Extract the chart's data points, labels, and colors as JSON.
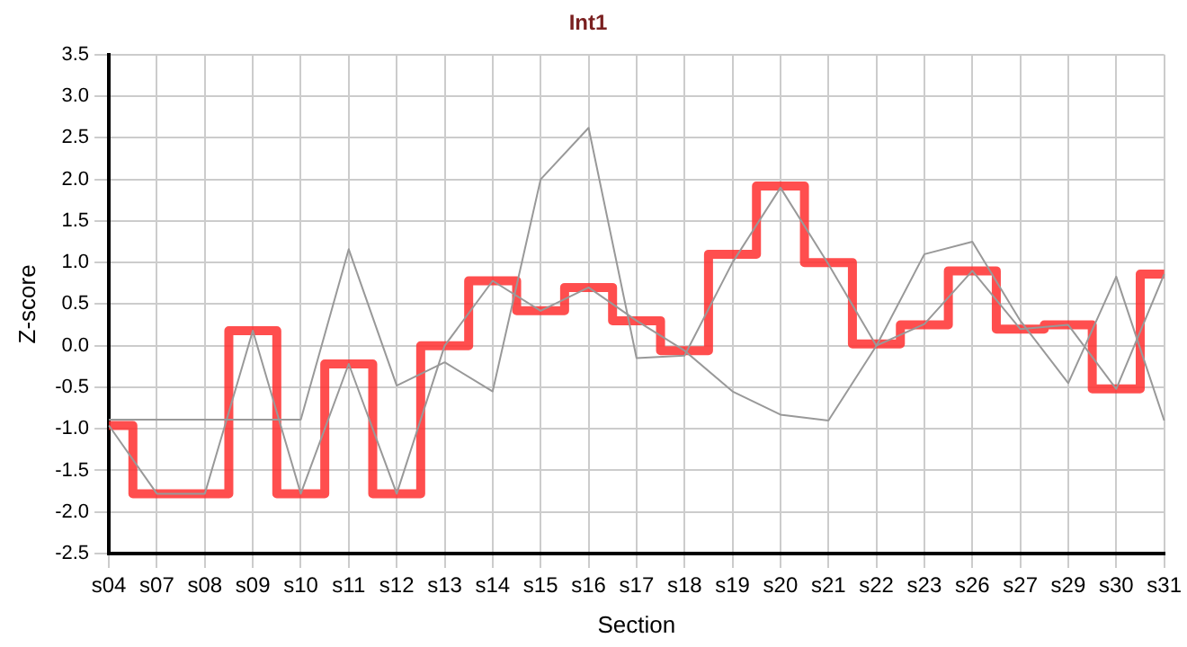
{
  "chart_data": {
    "type": "line",
    "title": "Int1",
    "xlabel": "Section",
    "ylabel": "Z-score",
    "categories": [
      "s04",
      "s07",
      "s08",
      "s09",
      "s10",
      "s11",
      "s12",
      "s13",
      "s14",
      "s15",
      "s16",
      "s17",
      "s18",
      "s19",
      "s20",
      "s21",
      "s22",
      "s23",
      "s26",
      "s27",
      "s29",
      "s30",
      "s31"
    ],
    "series": [
      {
        "type": "line",
        "color": "#999999",
        "values": [
          -0.89,
          -0.89,
          -0.89,
          -0.89,
          -0.89,
          1.16,
          -0.48,
          -0.2,
          -0.55,
          2.0,
          2.62,
          -0.15,
          -0.12,
          1.0,
          1.9,
          0.98,
          0.0,
          1.1,
          1.25,
          0.3,
          -0.45,
          0.83,
          -0.9
        ]
      },
      {
        "type": "line",
        "color": "#999999",
        "values": [
          -0.96,
          -1.78,
          -1.78,
          0.18,
          -1.78,
          -0.22,
          -1.78,
          0.0,
          0.78,
          0.42,
          0.7,
          0.3,
          -0.06,
          -0.55,
          -0.83,
          -0.9,
          0.0,
          0.26,
          0.9,
          0.2,
          0.25,
          -0.52,
          0.86
        ]
      },
      {
        "type": "step",
        "color": "#ff3333",
        "values": [
          -0.96,
          -1.78,
          -1.78,
          0.18,
          -1.78,
          -0.22,
          -1.78,
          0.0,
          0.78,
          0.42,
          0.7,
          0.3,
          -0.06,
          1.1,
          1.92,
          1.0,
          0.02,
          0.25,
          0.9,
          0.2,
          0.25,
          -0.52,
          0.86
        ]
      }
    ],
    "ylim": [
      -2.5,
      3.5
    ],
    "yticks": [
      -2.5,
      {
        "value": -2,
        "label": "-2.0"
      },
      -1.5,
      {
        "value": -1,
        "label": "-1.0"
      },
      -0.5,
      {
        "value": 0,
        "label": "0.0"
      },
      0.5,
      {
        "value": 1,
        "label": "1.0"
      },
      1.5,
      {
        "value": 2,
        "label": "2.0"
      },
      2.5,
      {
        "value": 3,
        "label": "3.0"
      },
      3.5
    ],
    "grid": true,
    "legend": false,
    "marker": "none",
    "line_style": "solid"
  }
}
